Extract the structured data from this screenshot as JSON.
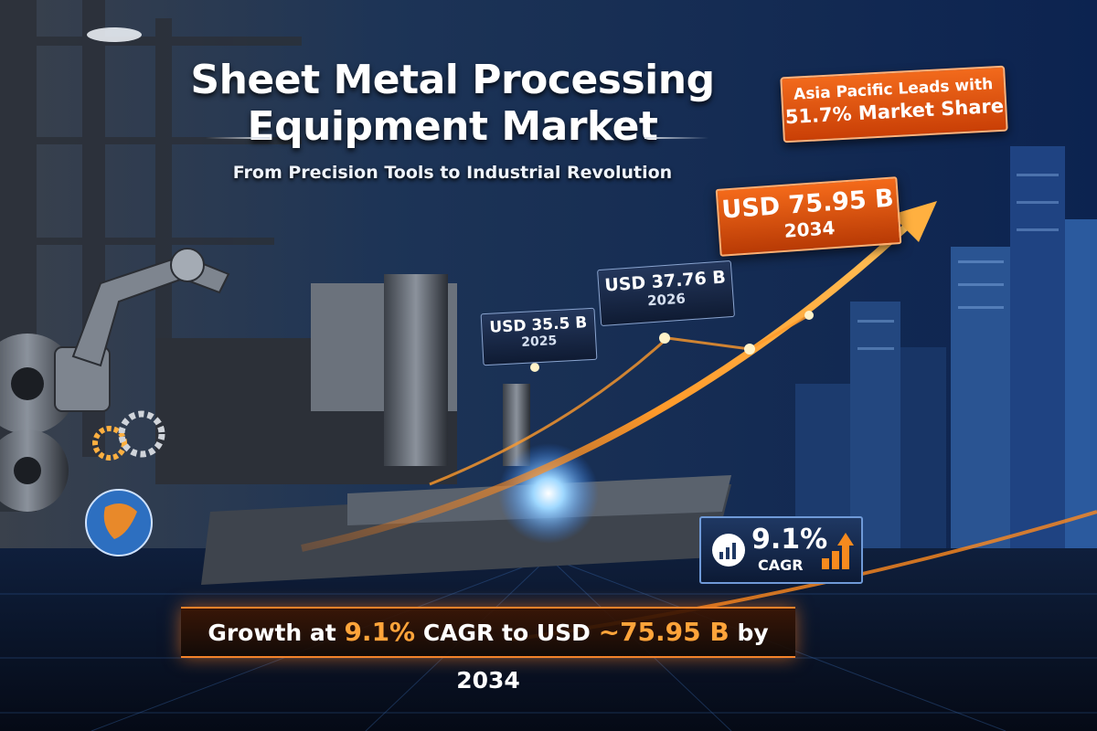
{
  "title": {
    "line1": "Sheet Metal Processing",
    "line2": "Equipment Market"
  },
  "subtitle": "From Precision Tools to Industrial Revolution",
  "badge": {
    "line1": "Asia Pacific Leads with",
    "line2": "51.7% Market Share"
  },
  "callouts": [
    {
      "value": "USD 75.95 B",
      "year": "2034"
    },
    {
      "value": "USD 37.76 B",
      "year": "2026"
    },
    {
      "value": "USD 35.5 B",
      "year": "2025"
    }
  ],
  "cagr": {
    "value": "9.1%",
    "label": "CAGR"
  },
  "banner": [
    "Growth at",
    "9.1%",
    "CAGR to USD",
    "~75.95 B",
    "by 2034"
  ]
}
